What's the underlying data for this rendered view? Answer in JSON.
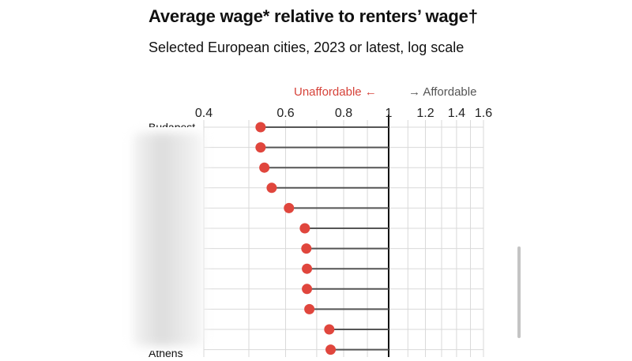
{
  "header": {
    "title": "Average wage* relative to renters’ wage†",
    "subtitle": "Selected European cities, 2023 or latest, log scale"
  },
  "legend": {
    "unaffordable": "Unaffordable ←",
    "affordable": "→ Affordable"
  },
  "colors": {
    "dot": "#e0463d",
    "stem": "#555555",
    "grid": "#d9d9d9",
    "reference": "#111111",
    "unaffordable": "#d6433a"
  },
  "chart_data": {
    "type": "lollipop",
    "scale": "log",
    "xlim": [
      0.4,
      1.6
    ],
    "ticks": [
      0.4,
      0.6,
      0.8,
      1,
      1.2,
      1.4,
      1.6
    ],
    "tick_labels": [
      "0.4",
      "0.6",
      "0.8",
      "1",
      "1.2",
      "1.4",
      "1.6"
    ],
    "reference": 1,
    "grid": true,
    "categories": [
      "Budapest",
      "",
      "",
      "",
      "",
      "",
      "",
      "",
      "",
      "",
      "",
      "Athens"
    ],
    "values": [
      0.53,
      0.53,
      0.54,
      0.56,
      0.61,
      0.66,
      0.665,
      0.667,
      0.667,
      0.675,
      0.745,
      0.75
    ]
  },
  "scrollbar": {
    "position": 0.85
  }
}
